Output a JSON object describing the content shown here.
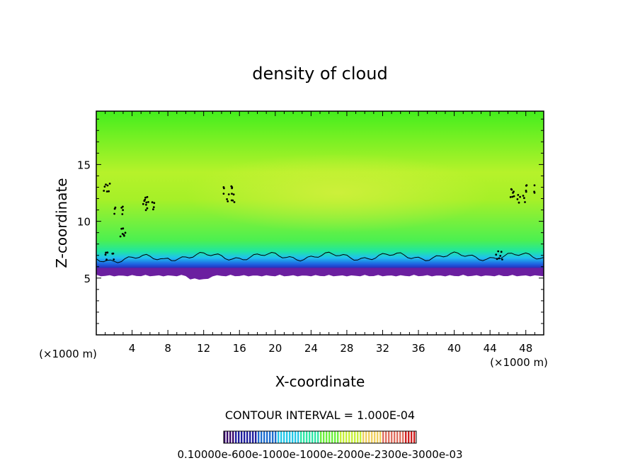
{
  "chart_data": {
    "type": "heatmap",
    "title": "density of cloud",
    "xlabel": "X-coordinate",
    "ylabel": "Z-coordinate",
    "x_unit": "(×1000 m)",
    "z_unit": "(×1000 m)",
    "xlim": [
      0,
      50
    ],
    "ylim": [
      0,
      19.7
    ],
    "x_ticks": [
      4,
      8,
      12,
      16,
      20,
      24,
      28,
      32,
      36,
      40,
      44,
      48
    ],
    "y_ticks": [
      5,
      10,
      15
    ],
    "x_tick_labels": [
      "4",
      "8",
      "12",
      "16",
      "20",
      "24",
      "28",
      "32",
      "36",
      "40",
      "44",
      "48"
    ],
    "y_tick_labels": [
      "5",
      "10",
      "15"
    ],
    "contour_interval_text": "CONTOUR INTERVAL = 1.000E-04",
    "colorbar_labels_text": "0.10000e-600e-1000e-1000e-2000e-2300e-3000e-03",
    "colorbar_colors": [
      "#3a0b6e",
      "#2020a0",
      "#1f6fd0",
      "#25c8e8",
      "#2ee6a8",
      "#6cf03c",
      "#c8f03a",
      "#f0d060",
      "#e07060",
      "#d02020"
    ],
    "description_of_field": {
      "cloud_base_km": 5.5,
      "dense_layer_bottom_km": 5.3,
      "dense_layer_top_km": 6.9,
      "upper_field": "light green with slightly yellower region near x 20-35, z 11-14"
    }
  }
}
